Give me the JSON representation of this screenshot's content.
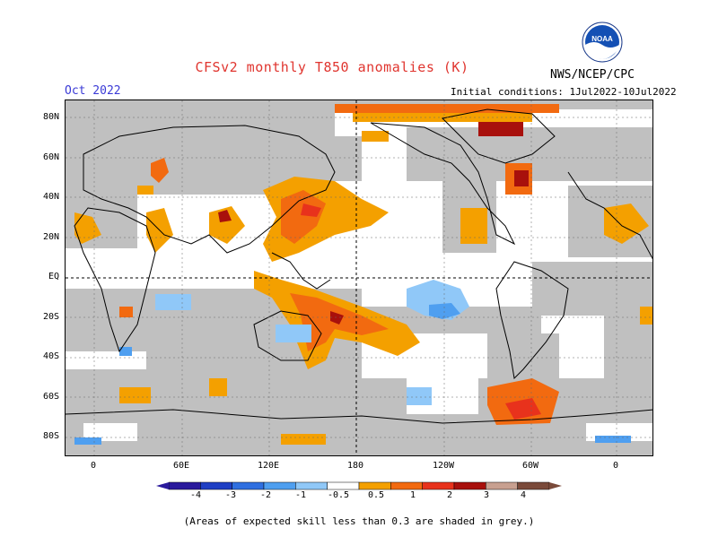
{
  "title": "CFSv2 monthly T850 anomalies (K)",
  "month": "Oct 2022",
  "initial_conditions": "Initial conditions: 1Jul2022-10Jul2022",
  "agency": "NWS/NCEP/CPC",
  "logo_text": "NOAA",
  "footnote": "(Areas of expected skill less than 0.3 are shaded in grey.)",
  "lat_labels": [
    "80N",
    "60N",
    "40N",
    "20N",
    "EQ",
    "20S",
    "40S",
    "60S",
    "80S"
  ],
  "lon_labels": [
    "0",
    "60E",
    "120E",
    "180",
    "120W",
    "60W",
    "0"
  ],
  "colorbar": {
    "labels": [
      "-4",
      "-3",
      "-2",
      "-1",
      "-0.5",
      "0.5",
      "1",
      "2",
      "3",
      "4"
    ],
    "colors": [
      "#2a1a9c",
      "#1f3fc4",
      "#2f6fe0",
      "#4f9ff0",
      "#90c8f8",
      "#ffffff",
      "#f4a000",
      "#f26a10",
      "#e8321c",
      "#a8100c",
      "#c8a090",
      "#7a4a3a"
    ]
  },
  "colors": {
    "grey_skill": "#c0c0c0",
    "title": "#e0352f",
    "month": "#3a3ad6"
  }
}
